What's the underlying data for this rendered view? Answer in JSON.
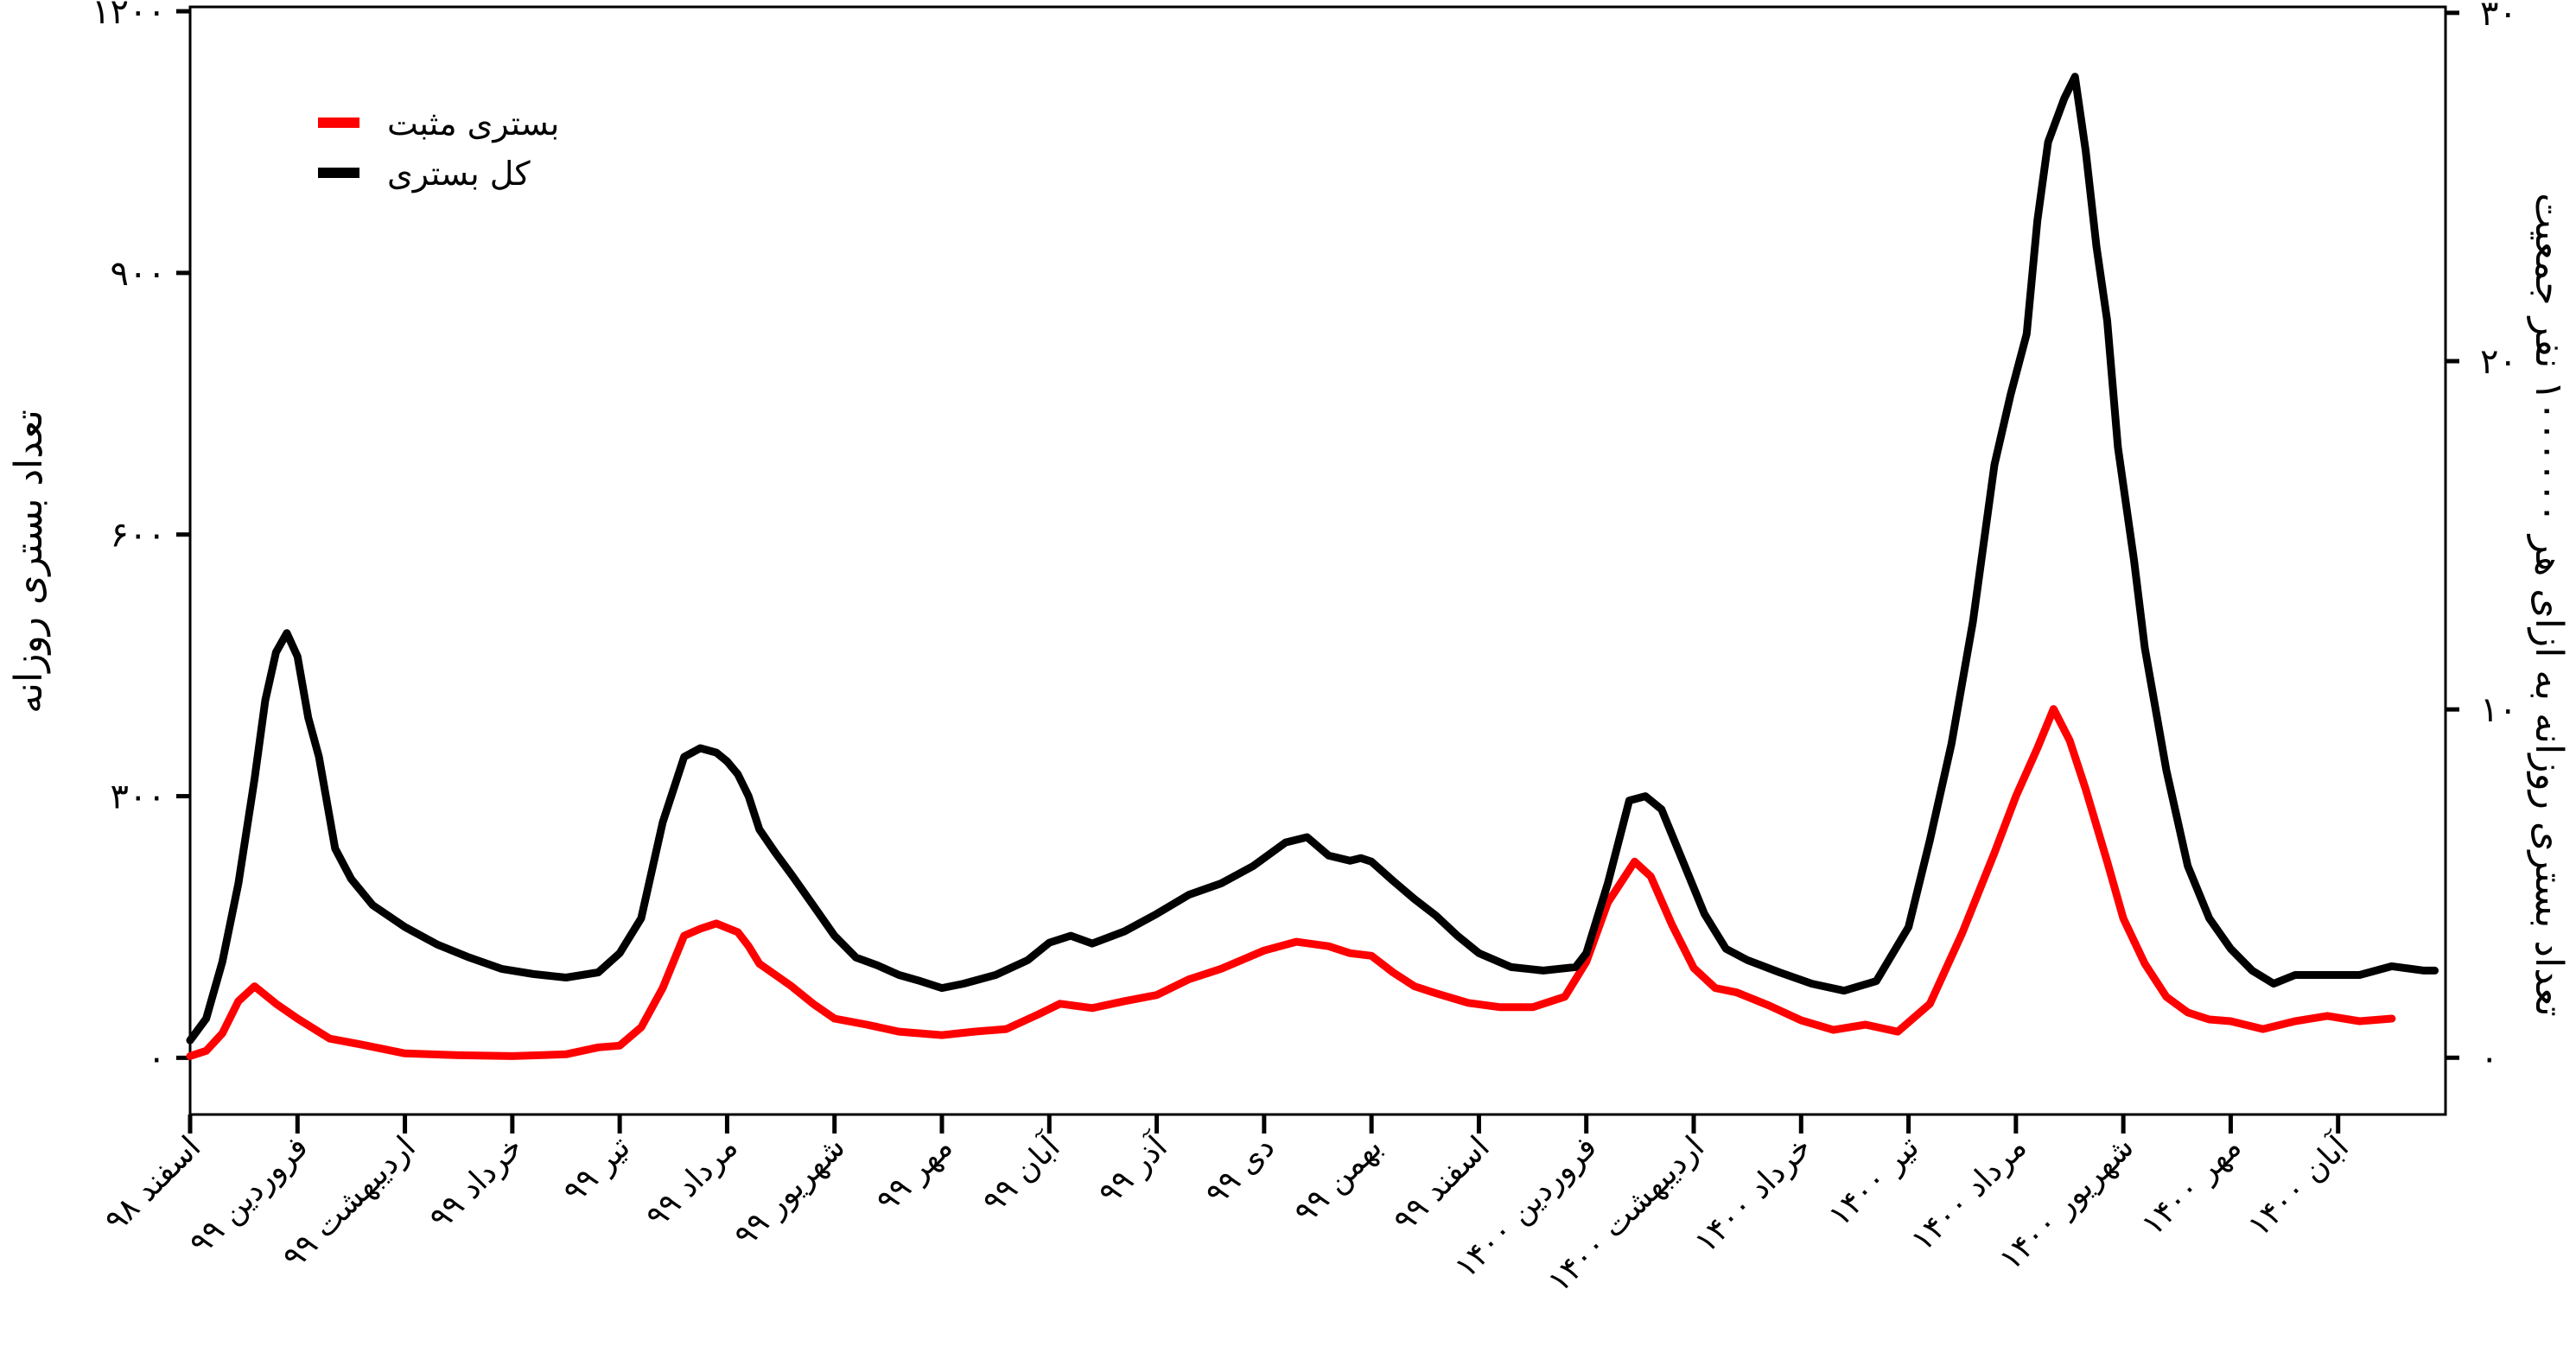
{
  "chart_data": {
    "type": "line",
    "xlabel": "",
    "ylabel": "تعداد بستری روزانه",
    "ylabel_right": "تعداد بستری روزانه به ازای هر ۱۰۰۰۰۰۰ نفر جمعیت",
    "ylim": [
      -65,
      1205
    ],
    "ylim_right": [
      -1.63,
      30.17
    ],
    "y_ticks": [
      0,
      300,
      600,
      900,
      1200
    ],
    "y_tick_labels": [
      "۰",
      "۳۰۰",
      "۶۰۰",
      "۹۰۰",
      "۱۲۰۰"
    ],
    "y_right_ticks": [
      0,
      10,
      20,
      30
    ],
    "y_right_tick_labels": [
      "۰",
      "۱۰",
      "۲۰",
      "۳۰"
    ],
    "grid": false,
    "legend_position": "top-left",
    "x_tick_labels": [
      "اسفند ۹۸",
      "فروردین ۹۹",
      "اردیبهشت ۹۹",
      "خرداد ۹۹",
      "تیر ۹۹",
      "مرداد ۹۹",
      "شهریور ۹۹",
      "مهر ۹۹",
      "آبان ۹۹",
      "آذر ۹۹",
      "دی ۹۹",
      "بهمن ۹۹",
      "اسفند ۹۹",
      "فروردین ۱۴۰۰",
      "اردیبهشت ۱۴۰۰",
      "خرداد ۱۴۰۰",
      "تیر ۱۴۰۰",
      "مرداد ۱۴۰۰",
      "شهریور ۱۴۰۰",
      "مهر ۱۴۰۰",
      "آبان ۱۴۰۰"
    ],
    "x_ticks": [
      0,
      1,
      2,
      3,
      4,
      5,
      6,
      7,
      8,
      9,
      10,
      11,
      12,
      13,
      14,
      15,
      16,
      17,
      18,
      19,
      20
    ],
    "xlim": [
      0,
      21.0
    ],
    "series": [
      {
        "name": "بستری مثبت",
        "color": "#ff0000",
        "x": [
          0,
          0.15,
          0.3,
          0.45,
          0.6,
          0.8,
          1.0,
          1.3,
          1.6,
          2.0,
          2.5,
          3.0,
          3.5,
          3.8,
          4.0,
          4.2,
          4.4,
          4.6,
          4.75,
          4.9,
          5.1,
          5.2,
          5.3,
          5.45,
          5.6,
          5.8,
          6.0,
          6.3,
          6.6,
          7.0,
          7.3,
          7.6,
          7.9,
          8.1,
          8.4,
          8.7,
          9.0,
          9.3,
          9.6,
          10.0,
          10.3,
          10.6,
          10.8,
          11.0,
          11.2,
          11.4,
          11.6,
          11.9,
          12.2,
          12.5,
          12.8,
          13.0,
          13.2,
          13.45,
          13.6,
          13.8,
          14.0,
          14.2,
          14.4,
          14.7,
          15.0,
          15.3,
          15.6,
          15.9,
          16.2,
          16.5,
          16.8,
          17.0,
          17.2,
          17.35,
          17.5,
          17.65,
          17.85,
          18.0,
          18.2,
          18.4,
          18.6,
          18.8,
          19.0,
          19.3,
          19.6,
          19.9,
          20.2,
          20.5
        ],
        "y": [
          2,
          8,
          28,
          65,
          82,
          62,
          45,
          22,
          15,
          5,
          3,
          2,
          4,
          12,
          14,
          35,
          80,
          140,
          148,
          154,
          144,
          128,
          108,
          95,
          82,
          62,
          45,
          38,
          30,
          26,
          30,
          33,
          50,
          62,
          57,
          65,
          72,
          90,
          102,
          123,
          133,
          128,
          120,
          117,
          98,
          82,
          74,
          63,
          58,
          58,
          70,
          110,
          178,
          225,
          208,
          152,
          103,
          80,
          75,
          60,
          43,
          32,
          38,
          30,
          62,
          143,
          235,
          300,
          355,
          400,
          364,
          308,
          225,
          160,
          108,
          70,
          52,
          44,
          42,
          33,
          42,
          48,
          42,
          45
        ]
      },
      {
        "name": "کل بستری",
        "color": "#000000",
        "x": [
          0,
          0.15,
          0.3,
          0.45,
          0.6,
          0.7,
          0.8,
          0.9,
          1.0,
          1.1,
          1.2,
          1.35,
          1.5,
          1.7,
          2.0,
          2.3,
          2.6,
          2.9,
          3.2,
          3.5,
          3.8,
          4.0,
          4.2,
          4.4,
          4.6,
          4.75,
          4.9,
          5.0,
          5.1,
          5.2,
          5.3,
          5.45,
          5.6,
          5.8,
          6.0,
          6.2,
          6.4,
          6.6,
          6.8,
          7.0,
          7.2,
          7.5,
          7.8,
          8.0,
          8.2,
          8.4,
          8.7,
          9.0,
          9.3,
          9.6,
          9.9,
          10.2,
          10.4,
          10.6,
          10.8,
          10.9,
          11.0,
          11.2,
          11.4,
          11.6,
          11.8,
          12.0,
          12.3,
          12.6,
          12.9,
          13.0,
          13.2,
          13.4,
          13.55,
          13.7,
          13.9,
          14.1,
          14.3,
          14.5,
          14.8,
          15.1,
          15.4,
          15.7,
          16.0,
          16.2,
          16.4,
          16.6,
          16.8,
          16.95,
          17.1,
          17.2,
          17.3,
          17.45,
          17.55,
          17.65,
          17.75,
          17.85,
          17.95,
          18.1,
          18.2,
          18.4,
          18.6,
          18.8,
          19.0,
          19.2,
          19.4,
          19.6,
          19.9,
          20.2,
          20.5,
          20.8,
          20.9
        ],
        "y": [
          20,
          45,
          110,
          200,
          320,
          410,
          465,
          487,
          460,
          390,
          345,
          240,
          205,
          175,
          150,
          130,
          115,
          102,
          96,
          92,
          98,
          120,
          160,
          270,
          345,
          355,
          350,
          340,
          325,
          300,
          262,
          235,
          210,
          175,
          140,
          115,
          106,
          95,
          88,
          80,
          85,
          95,
          112,
          132,
          140,
          131,
          145,
          165,
          187,
          200,
          220,
          247,
          253,
          232,
          226,
          229,
          225,
          203,
          182,
          163,
          140,
          120,
          104,
          100,
          104,
          120,
          200,
          295,
          300,
          285,
          225,
          165,
          125,
          112,
          98,
          85,
          77,
          88,
          150,
          250,
          360,
          500,
          680,
          760,
          830,
          960,
          1050,
          1100,
          1125,
          1040,
          930,
          845,
          700,
          570,
          470,
          330,
          220,
          160,
          125,
          100,
          85,
          95,
          95,
          95,
          105,
          100,
          100
        ]
      }
    ]
  },
  "legend": {
    "items": [
      {
        "label": "بستری مثبت",
        "color": "#ff0000"
      },
      {
        "label": "کل بستری",
        "color": "#000000"
      }
    ]
  }
}
